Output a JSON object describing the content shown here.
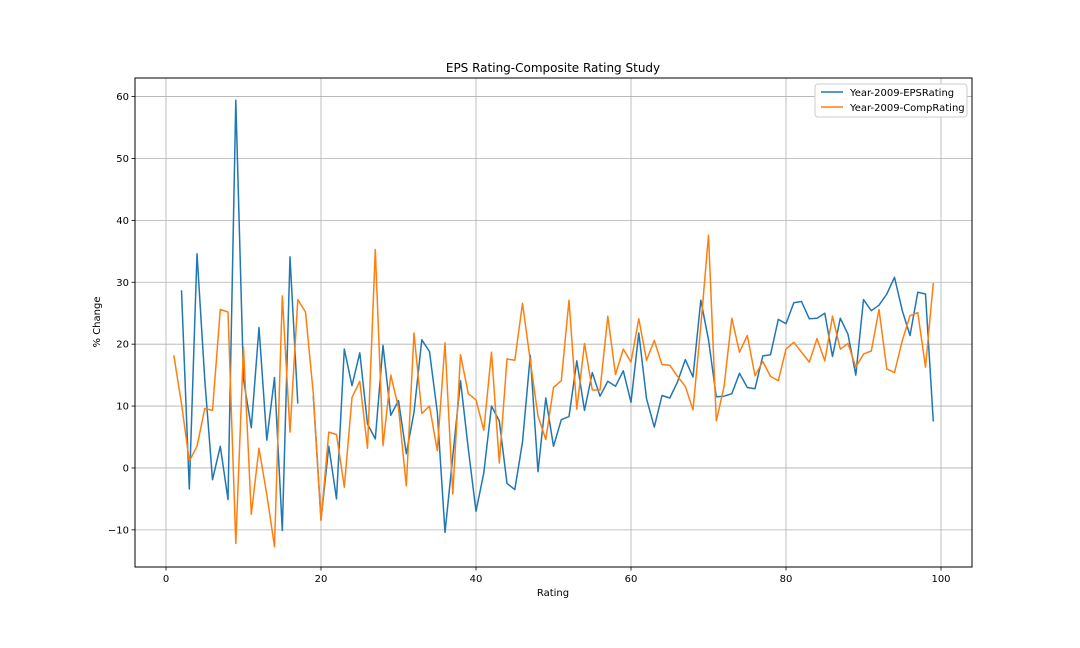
{
  "chart_data": {
    "type": "line",
    "title": "EPS Rating-Composite Rating Study",
    "xlabel": "Rating",
    "ylabel": "% Change",
    "xlim": [
      -4,
      104
    ],
    "ylim": [
      -16,
      63
    ],
    "xticks": [
      0,
      20,
      40,
      60,
      80,
      100
    ],
    "yticks": [
      -10,
      0,
      10,
      20,
      30,
      40,
      50,
      60
    ],
    "grid": true,
    "legend_position": "top-right",
    "series": [
      {
        "name": "Year-2009-EPSRating",
        "color": "#1f77b4",
        "x": [
          2,
          3,
          4,
          5,
          6,
          7,
          8,
          9,
          10,
          11,
          12,
          13,
          14,
          15,
          16,
          17,
          null,
          19,
          20,
          21,
          22,
          23,
          24,
          25,
          26,
          27,
          28,
          29,
          30,
          31,
          32,
          33,
          34,
          35,
          36,
          37,
          38,
          39,
          40,
          41,
          42,
          43,
          44,
          45,
          46,
          47,
          48,
          49,
          50,
          51,
          52,
          53,
          54,
          55,
          56,
          57,
          58,
          59,
          60,
          61,
          62,
          63,
          64,
          65,
          66,
          67,
          68,
          69,
          70,
          71,
          72,
          73,
          74,
          75,
          76,
          77,
          78,
          79,
          80,
          81,
          82,
          83,
          84,
          85,
          86,
          87,
          88,
          89,
          90,
          91,
          92,
          93,
          94,
          95,
          96,
          97,
          98,
          99
        ],
        "y": [
          28.7,
          -3.4,
          34.6,
          14.2,
          -1.9,
          3.5,
          -5.1,
          59.4,
          14.3,
          6.5,
          22.7,
          4.5,
          14.6,
          -10.1,
          34.1,
          10.4,
          null,
          11.6,
          -8.3,
          3.5,
          -5.0,
          19.2,
          13.3,
          18.6,
          7.1,
          4.7,
          19.8,
          8.5,
          10.9,
          2.3,
          9.0,
          20.7,
          18.8,
          9.0,
          -10.4,
          1.9,
          14.1,
          3.1,
          -7.0,
          -0.8,
          10.0,
          7.6,
          -2.5,
          -3.5,
          4.2,
          18.2,
          -0.6,
          11.3,
          3.5,
          7.8,
          8.3,
          17.3,
          9.3,
          15.4,
          11.6,
          14.0,
          13.2,
          15.7,
          10.6,
          21.8,
          11.2,
          6.6,
          11.7,
          11.3,
          13.9,
          17.5,
          14.7,
          27.1,
          20.7,
          11.5,
          11.6,
          12.0,
          15.3,
          13.0,
          12.8,
          18.1,
          18.3,
          24.0,
          23.3,
          26.7,
          26.9,
          24.1,
          24.2,
          25.0,
          18.0,
          24.2,
          21.6,
          15.0,
          27.2,
          25.4,
          26.3,
          28.1,
          30.8,
          25.4,
          21.4,
          28.4,
          28.1,
          7.5
        ]
      },
      {
        "name": "Year-2009-CompRating",
        "color": "#ff7f0e",
        "x": [
          1,
          2,
          3,
          4,
          5,
          6,
          7,
          8,
          9,
          10,
          11,
          12,
          13,
          14,
          15,
          16,
          17,
          18,
          19,
          20,
          21,
          22,
          23,
          24,
          25,
          26,
          27,
          28,
          29,
          30,
          31,
          32,
          33,
          34,
          35,
          36,
          37,
          38,
          39,
          40,
          41,
          42,
          43,
          44,
          45,
          46,
          47,
          48,
          49,
          50,
          51,
          52,
          53,
          54,
          55,
          56,
          57,
          58,
          59,
          60,
          61,
          62,
          63,
          64,
          65,
          66,
          67,
          68,
          69,
          70,
          71,
          72,
          73,
          74,
          75,
          76,
          77,
          78,
          79,
          80,
          81,
          82,
          83,
          84,
          85,
          86,
          87,
          88,
          89,
          90,
          91,
          92,
          93,
          94,
          95,
          96,
          97,
          98,
          99
        ],
        "y": [
          18.2,
          10.4,
          1.1,
          3.5,
          9.6,
          9.3,
          25.6,
          25.2,
          -12.2,
          19.5,
          -7.5,
          3.2,
          -4.3,
          -12.7,
          27.8,
          5.8,
          27.2,
          25.2,
          12.0,
          -8.5,
          5.8,
          5.4,
          -3.1,
          11.4,
          14.0,
          3.2,
          35.3,
          3.6,
          15.0,
          9.7,
          -2.9,
          21.8,
          8.8,
          10.0,
          2.8,
          20.2,
          -4.2,
          18.3,
          12.0,
          11.0,
          6.1,
          18.7,
          0.8,
          17.6,
          17.4,
          26.6,
          17.3,
          8.4,
          4.6,
          13.0,
          14.1,
          27.1,
          9.5,
          20.1,
          12.6,
          12.6,
          24.5,
          15.1,
          19.2,
          17.1,
          24.1,
          17.4,
          20.6,
          16.7,
          16.6,
          14.8,
          13.2,
          9.4,
          22.9,
          37.6,
          7.6,
          13.1,
          24.2,
          18.7,
          21.4,
          14.9,
          17.2,
          14.8,
          14.1,
          19.2,
          20.3,
          18.7,
          17.1,
          20.9,
          17.3,
          24.5,
          19.2,
          20.1,
          16.3,
          18.4,
          18.9,
          25.6,
          16.0,
          15.4,
          20.6,
          24.6,
          25.1,
          16.3,
          29.9
        ]
      }
    ]
  }
}
